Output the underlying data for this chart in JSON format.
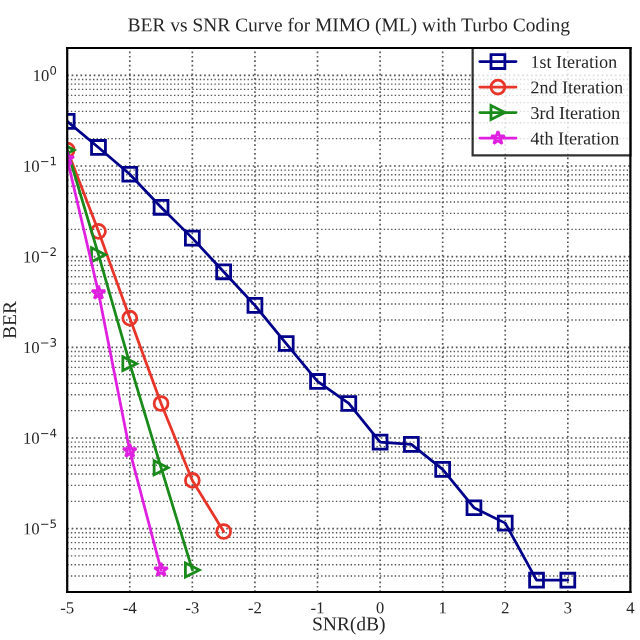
{
  "chart_data": {
    "type": "line",
    "title": "BER vs SNR Curve for MIMO (ML) with Turbo Coding",
    "xlabel": "SNR(dB)",
    "ylabel": "BER",
    "log": "y",
    "grid": true,
    "legend": "top right",
    "line_style": "solid",
    "xlim": [
      -5,
      4
    ],
    "xticks": [
      -5,
      -4,
      -3,
      -2,
      -1,
      0,
      1,
      2,
      3,
      4
    ],
    "ylim": [
      2e-06,
      2
    ],
    "yticks": [
      {
        "value": 1,
        "label": "10$^{0}$"
      },
      {
        "value": 0.1,
        "label": "10$^{−1}$"
      },
      {
        "value": 0.01,
        "label": "10$^{−2}$"
      },
      {
        "value": 0.001,
        "label": "10$^{−3}$"
      },
      {
        "value": 0.0001,
        "label": "10$^{−4}$"
      },
      {
        "value": 1e-05,
        "label": "10$^{−5}$"
      }
    ],
    "series": [
      {
        "name": "1st Iteration",
        "color": "#00008b",
        "marker": "square",
        "x": [
          -5,
          -4.5,
          -4,
          -3.5,
          -3,
          -2.5,
          -2,
          -1.5,
          -1,
          -0.5,
          0,
          0.5,
          1,
          1.5,
          2,
          2.5,
          3
        ],
        "values": [
          0.31,
          0.16,
          0.081,
          0.035,
          0.016,
          0.0068,
          0.0029,
          0.0011,
          0.00042,
          0.00024,
          9e-05,
          8.5e-05,
          4.5e-05,
          1.7e-05,
          1.15e-05,
          2.7e-06,
          2.7e-06
        ]
      },
      {
        "name": "2nd Iteration",
        "color": "#e8352a",
        "marker": "circle",
        "x": [
          -5,
          -4.5,
          -4,
          -3.5,
          -3,
          -2.5
        ],
        "values": [
          0.15,
          0.019,
          0.0021,
          0.00024,
          3.4e-05,
          9.3e-06
        ]
      },
      {
        "name": "3rd Iteration",
        "color": "#1a8a1a",
        "marker": "triangle",
        "x": [
          -5,
          -4.5,
          -4,
          -3.5,
          -3
        ],
        "values": [
          0.15,
          0.0105,
          0.00066,
          4.7e-05,
          3.5e-06
        ]
      },
      {
        "name": "4th Iteration",
        "color": "#e020e0",
        "marker": "star",
        "x": [
          -5,
          -4.5,
          -4,
          -3.5
        ],
        "values": [
          0.12,
          0.004,
          7.2e-05,
          3.5e-06
        ]
      }
    ]
  }
}
